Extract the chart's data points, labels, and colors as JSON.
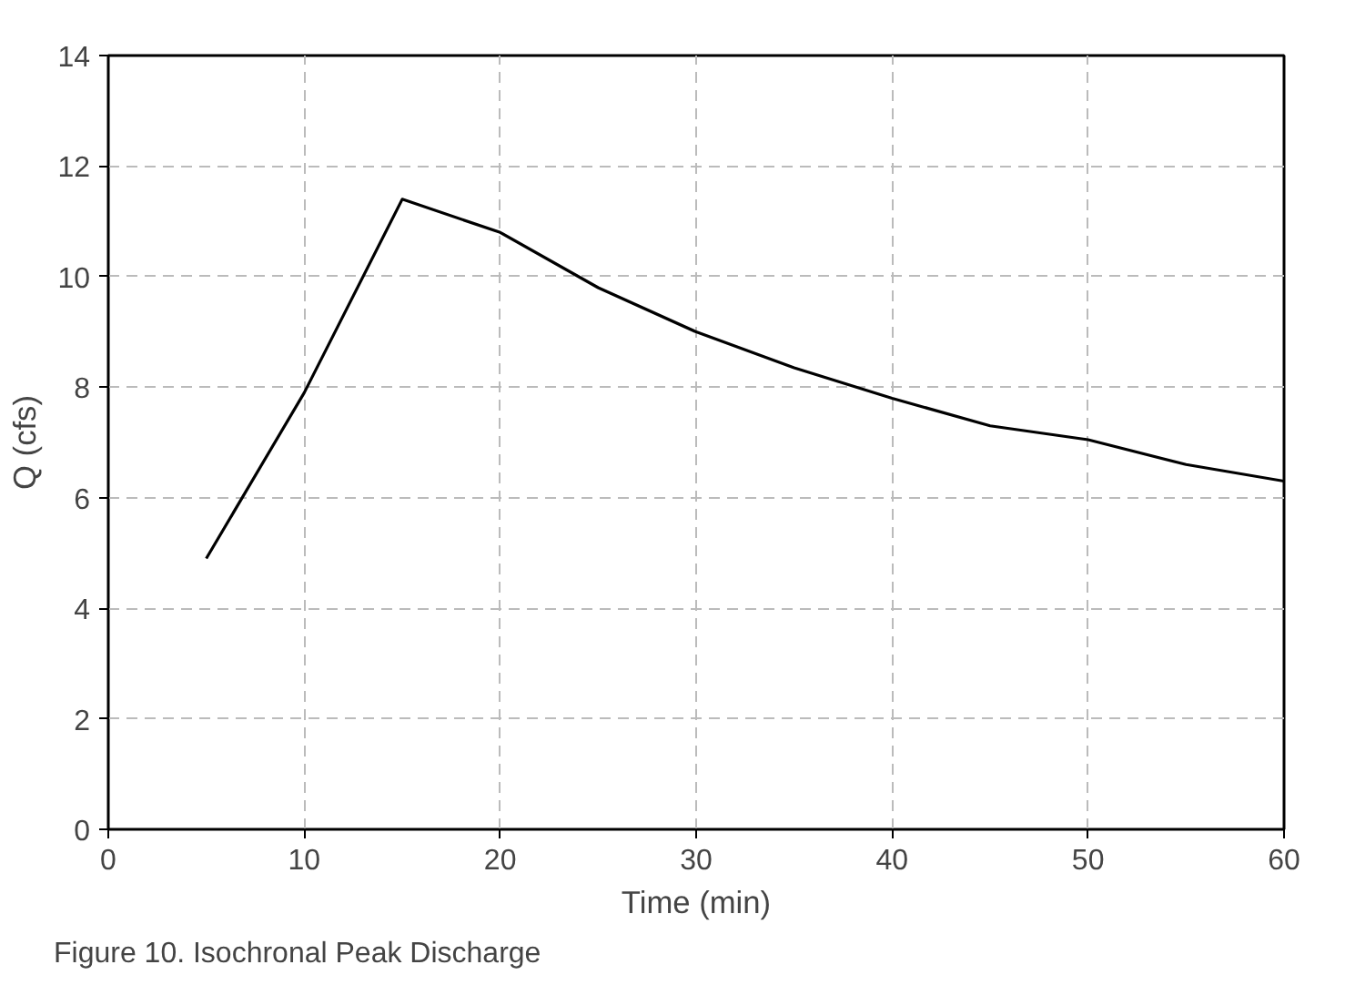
{
  "chart_data": {
    "type": "line",
    "xlabel": "Time (min)",
    "ylabel": "Q (cfs)",
    "x": [
      5,
      10,
      15,
      20,
      25,
      30,
      35,
      40,
      45,
      50,
      55,
      60
    ],
    "series": [
      {
        "color": "#000000",
        "values": [
          4.9,
          7.9,
          11.4,
          10.8,
          9.8,
          9.0,
          8.35,
          7.8,
          7.3,
          7.05,
          6.6,
          6.3
        ]
      }
    ],
    "xlim": [
      0,
      60
    ],
    "xticks": [
      0,
      10,
      20,
      30,
      40,
      50,
      60
    ],
    "ylim": [
      0,
      14
    ],
    "yticks": [
      0,
      2,
      4,
      6,
      8,
      10,
      12,
      14
    ],
    "grid": true,
    "line_style": "solid",
    "annotations": [
      "Figure 10. Isochronal Peak Discharge"
    ]
  }
}
